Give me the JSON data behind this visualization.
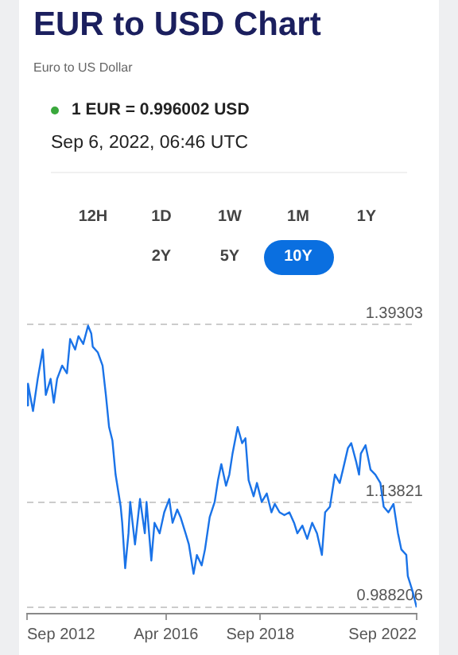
{
  "chart_data": {
    "type": "line",
    "title": "EUR to USD Chart",
    "subtitle": "Euro to US Dollar",
    "annotations": [
      "1 EUR = 0.996002 USD",
      "Sep 6, 2022, 06:46 UTC",
      "12H",
      "1D",
      "1W",
      "1M",
      "1Y",
      "2Y",
      "5Y",
      "10Y"
    ],
    "x": [
      "2012-09-06",
      "2012-09-15",
      "2012-11-01",
      "2012-12-15",
      "2013-02-01",
      "2013-03-01",
      "2013-04-15",
      "2013-05-15",
      "2013-06-15",
      "2013-08-01",
      "2013-09-15",
      "2013-10-15",
      "2013-12-01",
      "2014-01-01",
      "2014-02-15",
      "2014-04-01",
      "2014-05-01",
      "2014-05-15",
      "2014-07-01",
      "2014-08-15",
      "2014-09-15",
      "2014-10-15",
      "2014-11-15",
      "2014-12-15",
      "2015-02-01",
      "2015-02-15",
      "2015-03-15",
      "2015-04-15",
      "2015-05-01",
      "2015-06-15",
      "2015-08-01",
      "2015-09-15",
      "2015-10-01",
      "2015-11-15",
      "2015-12-15",
      "2016-02-01",
      "2016-03-15",
      "2016-05-01",
      "2016-06-01",
      "2016-07-15",
      "2016-08-15",
      "2016-10-01",
      "2016-11-01",
      "2016-12-15",
      "2017-01-15",
      "2017-03-01",
      "2017-04-01",
      "2017-05-15",
      "2017-07-01",
      "2017-08-01",
      "2017-09-01",
      "2017-10-15",
      "2017-11-15",
      "2017-12-15",
      "2018-02-01",
      "2018-03-15",
      "2018-04-15",
      "2018-05-15",
      "2018-07-01",
      "2018-08-01",
      "2018-09-15",
      "2018-11-01",
      "2018-12-15",
      "2019-01-15",
      "2019-03-01",
      "2019-04-15",
      "2019-06-01",
      "2019-07-15",
      "2019-08-15",
      "2019-10-01",
      "2019-11-15",
      "2020-01-01",
      "2020-02-15",
      "2020-04-01",
      "2020-05-01",
      "2020-06-15",
      "2020-08-01",
      "2020-09-15",
      "2020-10-15",
      "2020-12-01",
      "2021-01-01",
      "2021-02-15",
      "2021-03-15",
      "2021-04-01",
      "2021-05-15",
      "2021-07-01",
      "2021-08-15",
      "2021-10-01",
      "2021-11-01",
      "2021-12-15",
      "2022-02-01",
      "2022-03-15",
      "2022-04-15",
      "2022-06-01",
      "2022-06-15",
      "2022-08-01",
      "2022-09-06"
    ],
    "series": [
      {
        "color": "#1a73e8",
        "values": [
          1.277,
          1.308,
          1.269,
          1.315,
          1.357,
          1.292,
          1.315,
          1.281,
          1.315,
          1.334,
          1.323,
          1.372,
          1.357,
          1.376,
          1.365,
          1.391,
          1.38,
          1.361,
          1.353,
          1.334,
          1.292,
          1.246,
          1.227,
          1.178,
          1.132,
          1.109,
          1.044,
          1.094,
          1.139,
          1.078,
          1.143,
          1.094,
          1.139,
          1.055,
          1.109,
          1.094,
          1.124,
          1.143,
          1.109,
          1.128,
          1.117,
          1.094,
          1.078,
          1.036,
          1.063,
          1.048,
          1.071,
          1.117,
          1.139,
          1.17,
          1.193,
          1.162,
          1.178,
          1.208,
          1.246,
          1.223,
          1.23,
          1.17,
          1.147,
          1.166,
          1.139,
          1.151,
          1.124,
          1.136,
          1.124,
          1.12,
          1.124,
          1.109,
          1.094,
          1.105,
          1.086,
          1.109,
          1.094,
          1.063,
          1.124,
          1.132,
          1.178,
          1.166,
          1.185,
          1.216,
          1.223,
          1.197,
          1.178,
          1.208,
          1.22,
          1.185,
          1.178,
          1.166,
          1.132,
          1.124,
          1.136,
          1.094,
          1.071,
          1.063,
          1.033,
          1.01,
          0.988
        ]
      }
    ],
    "xlim": [
      "2012-09-06",
      "2022-09-06"
    ],
    "xticks": [
      {
        "value": "2012-09-06",
        "label": "Sep 2012"
      },
      {
        "value": "2016-04-01",
        "label": "Apr 2016"
      },
      {
        "value": "2018-09-01",
        "label": "Sep 2018"
      },
      {
        "value": "2022-09-06",
        "label": "Sep 2022"
      }
    ],
    "ylim": [
      0.979,
      1.39303
    ],
    "yticks": [
      0.988206,
      1.13821,
      1.39303
    ],
    "grid": "y",
    "legend": false,
    "marker": "none",
    "line_style": "solid"
  }
}
